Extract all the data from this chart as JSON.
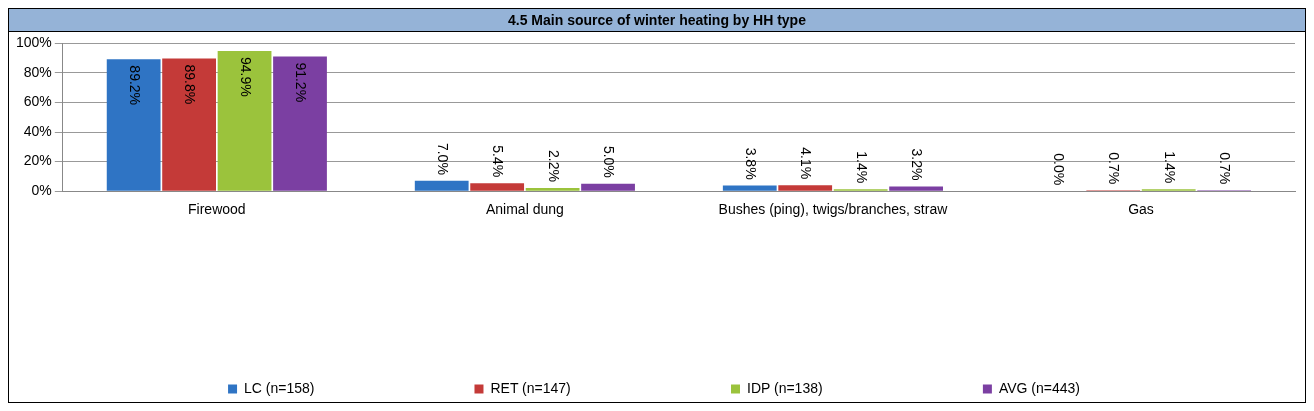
{
  "chart_data": {
    "type": "bar",
    "title": "4.5 Main source of winter heating by HH type",
    "categories": [
      "Firewood",
      "Animal dung",
      "Bushes (ping), twigs/branches, straw",
      "Gas"
    ],
    "series": [
      {
        "name": "LC (n=158)",
        "color": "#2f74c4",
        "values": [
          89.2,
          7.0,
          3.8,
          0.0
        ]
      },
      {
        "name": "RET (n=147)",
        "color": "#c43a38",
        "values": [
          89.8,
          5.4,
          4.1,
          0.7
        ]
      },
      {
        "name": "IDP (n=138)",
        "color": "#9bc33c",
        "values": [
          94.9,
          2.2,
          1.4,
          1.4
        ]
      },
      {
        "name": "AVG (n=443)",
        "color": "#7b3fa2",
        "values": [
          91.2,
          5.0,
          3.2,
          0.7
        ]
      }
    ],
    "ylim": [
      0,
      100
    ],
    "yticks": [
      {
        "value": 0,
        "label": "0%"
      },
      {
        "value": 20,
        "label": "20%"
      },
      {
        "value": 40,
        "label": "40%"
      },
      {
        "value": 60,
        "label": "60%"
      },
      {
        "value": 80,
        "label": "80%"
      },
      {
        "value": 100,
        "label": "100%"
      }
    ],
    "value_labels": [
      [
        "89.2%",
        "7.0%",
        "3.8%",
        "0.0%"
      ],
      [
        "89.8%",
        "5.4%",
        "4.1%",
        "0.7%"
      ],
      [
        "94.9%",
        "2.2%",
        "1.4%",
        "1.4%"
      ],
      [
        "91.2%",
        "5.0%",
        "3.2%",
        "0.7%"
      ]
    ],
    "grid": "y",
    "legend": "bottom"
  }
}
